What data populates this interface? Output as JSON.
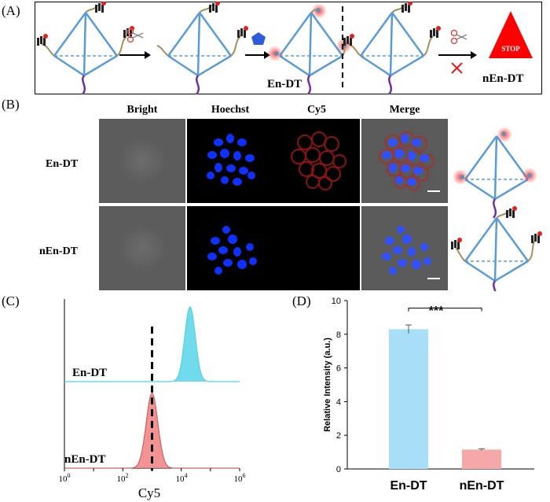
{
  "panel_a": {
    "label": "(A)",
    "en_label": "En-DT",
    "nen_label": "nEn-DT",
    "stop_text": "STOP",
    "colors": {
      "frame": "#5b9bd5",
      "linker": "#a09060",
      "dna": "#7030a0",
      "enzyme": "#2e5bd6",
      "stop": "#ff0000",
      "fluor": "#ff3b3b"
    }
  },
  "panel_b": {
    "label": "(B)",
    "columns": [
      "Bright",
      "Hoechst",
      "Cy5",
      "Merge"
    ],
    "rows": [
      "En-DT",
      "nEn-DT"
    ]
  },
  "panel_c": {
    "label": "(C)",
    "xlabel": "Cy5",
    "series_labels": [
      "En-DT",
      "nEn-DT"
    ],
    "ticks": [
      {
        "base": "10",
        "exp": "0"
      },
      {
        "base": "10",
        "exp": "2"
      },
      {
        "base": "10",
        "exp": "4"
      },
      {
        "base": "10",
        "exp": "6"
      }
    ]
  },
  "panel_d": {
    "label": "(D)",
    "significance": "***"
  },
  "chart_data": [
    {
      "type": "area",
      "xlabel": "Cy5",
      "xscale": "log",
      "xlim": [
        1,
        1000000
      ],
      "threshold_x": 1000,
      "series": [
        {
          "name": "En-DT",
          "color": "#4fd2e6",
          "peak": 20000,
          "width_log": 0.18
        },
        {
          "name": "nEn-DT",
          "color": "#f08080",
          "peak": 1000,
          "width_log": 0.2
        }
      ]
    },
    {
      "type": "bar",
      "categories": [
        "En-DT",
        "nEn-DT"
      ],
      "values": [
        8.3,
        1.15
      ],
      "errors": [
        0.25,
        0.05
      ],
      "colors": [
        "#a8def8",
        "#f5a8a8"
      ],
      "ylabel": "Relative Intensity (a.u.)",
      "ylim": [
        0,
        10
      ],
      "yticks": [
        0,
        2,
        4,
        6,
        8,
        10
      ],
      "significance": "***"
    }
  ]
}
